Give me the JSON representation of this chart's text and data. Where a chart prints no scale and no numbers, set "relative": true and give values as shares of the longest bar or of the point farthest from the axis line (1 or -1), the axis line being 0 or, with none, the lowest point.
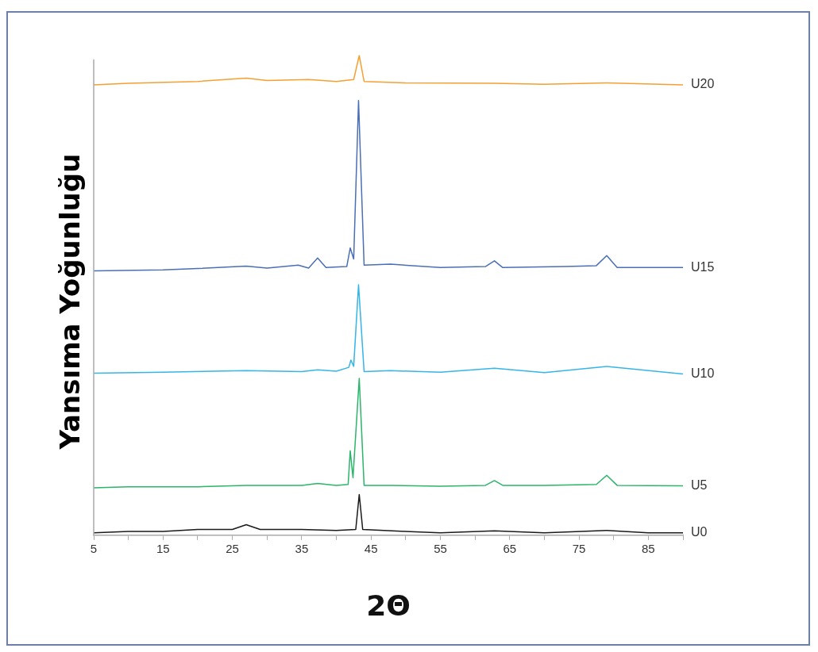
{
  "chart_data": {
    "type": "line",
    "relative": true,
    "xlabel": "2Θ",
    "ylabel": "Yansıma Yoğunluğu",
    "xlim": [
      5,
      90
    ],
    "xticks": [
      5,
      {
        "value": 10,
        "label": null
      },
      15,
      {
        "value": 20,
        "label": null
      },
      25,
      {
        "value": 30,
        "label": null
      },
      35,
      {
        "value": 40,
        "label": null
      },
      45,
      {
        "value": 50,
        "label": null
      },
      55,
      {
        "value": 60,
        "label": null
      },
      65,
      {
        "value": 70,
        "label": null
      },
      75,
      {
        "value": 80,
        "label": null
      },
      85,
      {
        "value": 90,
        "label": null
      }
    ],
    "grid": false,
    "legend": false,
    "marker": "none",
    "line_style": "solid",
    "series": [
      {
        "name": "U20",
        "color": "#f5a030",
        "x": [
          5,
          10,
          20,
          27,
          30,
          36,
          40,
          42.5,
          43.3,
          44,
          50,
          62.8,
          70,
          79,
          90
        ],
        "values": [
          0.939,
          0.942,
          0.946,
          0.953,
          0.948,
          0.95,
          0.946,
          0.95,
          1.0,
          0.946,
          0.943,
          0.942,
          0.94,
          0.943,
          0.939
        ]
      },
      {
        "name": "U15",
        "color": "#4a6fb5",
        "x": [
          5,
          15,
          20,
          27,
          30,
          34.5,
          36,
          37.3,
          38.5,
          41.5,
          42.0,
          42.5,
          43.2,
          44,
          47.8,
          55,
          61.5,
          62.8,
          64,
          73,
          77.5,
          79,
          80.5,
          90
        ],
        "values": [
          0.551,
          0.553,
          0.556,
          0.561,
          0.557,
          0.563,
          0.557,
          0.578,
          0.558,
          0.56,
          0.599,
          0.576,
          0.906,
          0.563,
          0.565,
          0.558,
          0.56,
          0.572,
          0.558,
          0.56,
          0.562,
          0.583,
          0.558,
          0.558
        ]
      },
      {
        "name": "U10",
        "color": "#35b5e8",
        "x": [
          5,
          15,
          27,
          35,
          37.3,
          40,
          41.8,
          42.1,
          42.5,
          43.2,
          44,
          47.8,
          55,
          62.8,
          70,
          79,
          90
        ],
        "values": [
          0.338,
          0.34,
          0.343,
          0.341,
          0.345,
          0.342,
          0.35,
          0.365,
          0.352,
          0.522,
          0.341,
          0.343,
          0.34,
          0.348,
          0.339,
          0.352,
          0.336
        ]
      },
      {
        "name": "U5",
        "color": "#2bb56a",
        "x": [
          5,
          10,
          20,
          27,
          35,
          37.3,
          40,
          41.7,
          42.0,
          42.4,
          43.3,
          44,
          48,
          55,
          61.5,
          62.8,
          64,
          70,
          77.5,
          79,
          80.5,
          90
        ],
        "values": [
          0.099,
          0.101,
          0.101,
          0.104,
          0.104,
          0.108,
          0.104,
          0.106,
          0.176,
          0.12,
          0.327,
          0.104,
          0.104,
          0.102,
          0.104,
          0.114,
          0.104,
          0.104,
          0.106,
          0.125,
          0.104,
          0.103
        ]
      },
      {
        "name": "U0",
        "color": "#1a1a1a",
        "x": [
          5,
          10,
          15,
          20,
          25,
          27,
          29,
          35,
          40,
          42.8,
          43.3,
          43.8,
          50,
          55,
          62.8,
          70,
          79,
          85,
          90
        ],
        "values": [
          0.005,
          0.008,
          0.008,
          0.012,
          0.012,
          0.022,
          0.012,
          0.012,
          0.01,
          0.012,
          0.085,
          0.012,
          0.008,
          0.005,
          0.009,
          0.005,
          0.01,
          0.005,
          0.005
        ]
      }
    ]
  }
}
